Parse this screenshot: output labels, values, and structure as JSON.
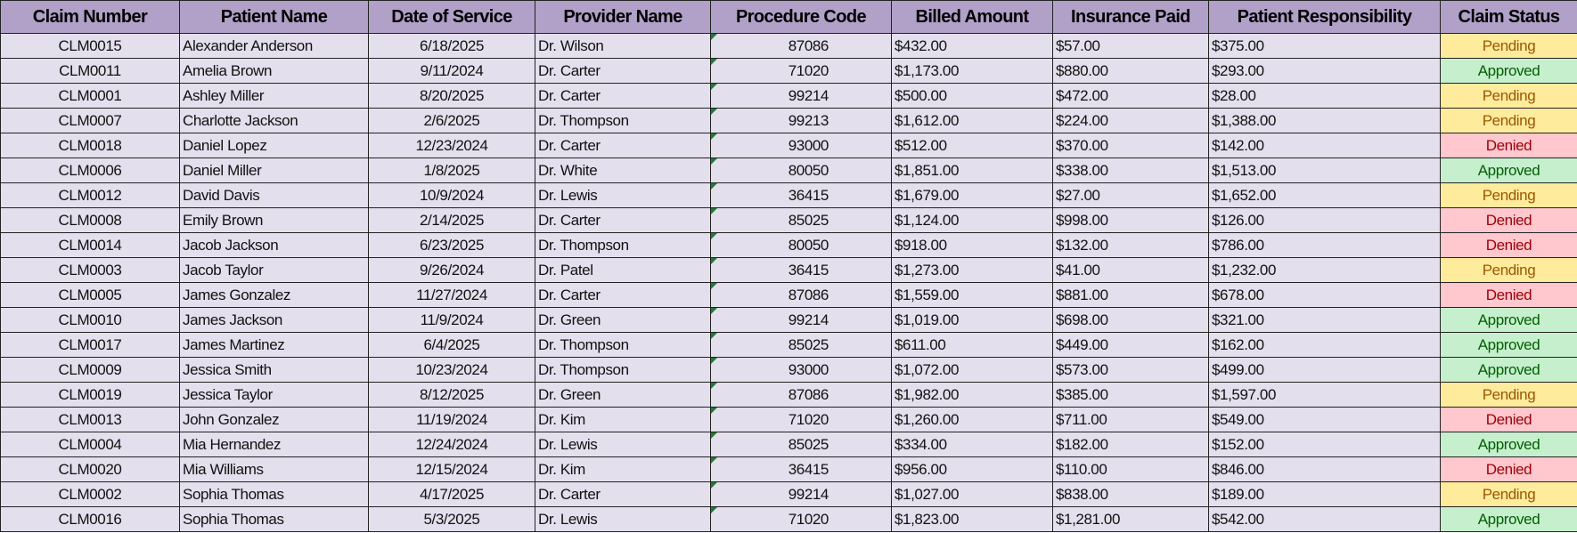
{
  "headers": [
    "Claim Number",
    "Patient Name",
    "Date of Service",
    "Provider Name",
    "Procedure Code",
    "Billed Amount",
    "Insurance Paid",
    "Patient Responsibility",
    "Claim Status"
  ],
  "status_colors": {
    "Pending": {
      "bg": "#ffeb9c",
      "fg": "#9c5700"
    },
    "Approved": {
      "bg": "#c6efce",
      "fg": "#006100"
    },
    "Denied": {
      "bg": "#ffc7ce",
      "fg": "#9c0006"
    }
  },
  "rows": [
    [
      "CLM0015",
      "Alexander Anderson",
      "6/18/2025",
      "Dr. Wilson",
      "87086",
      "$432.00",
      "$57.00",
      "$375.00",
      "Pending"
    ],
    [
      "CLM0011",
      "Amelia Brown",
      "9/11/2024",
      "Dr. Carter",
      "71020",
      "$1,173.00",
      "$880.00",
      "$293.00",
      "Approved"
    ],
    [
      "CLM0001",
      "Ashley Miller",
      "8/20/2025",
      "Dr. Carter",
      "99214",
      "$500.00",
      "$472.00",
      "$28.00",
      "Pending"
    ],
    [
      "CLM0007",
      "Charlotte Jackson",
      "2/6/2025",
      "Dr. Thompson",
      "99213",
      "$1,612.00",
      "$224.00",
      "$1,388.00",
      "Pending"
    ],
    [
      "CLM0018",
      "Daniel Lopez",
      "12/23/2024",
      "Dr. Carter",
      "93000",
      "$512.00",
      "$370.00",
      "$142.00",
      "Denied"
    ],
    [
      "CLM0006",
      "Daniel Miller",
      "1/8/2025",
      "Dr. White",
      "80050",
      "$1,851.00",
      "$338.00",
      "$1,513.00",
      "Approved"
    ],
    [
      "CLM0012",
      "David Davis",
      "10/9/2024",
      "Dr. Lewis",
      "36415",
      "$1,679.00",
      "$27.00",
      "$1,652.00",
      "Pending"
    ],
    [
      "CLM0008",
      "Emily Brown",
      "2/14/2025",
      "Dr. Carter",
      "85025",
      "$1,124.00",
      "$998.00",
      "$126.00",
      "Denied"
    ],
    [
      "CLM0014",
      "Jacob Jackson",
      "6/23/2025",
      "Dr. Thompson",
      "80050",
      "$918.00",
      "$132.00",
      "$786.00",
      "Denied"
    ],
    [
      "CLM0003",
      "Jacob Taylor",
      "9/26/2024",
      "Dr. Patel",
      "36415",
      "$1,273.00",
      "$41.00",
      "$1,232.00",
      "Pending"
    ],
    [
      "CLM0005",
      "James Gonzalez",
      "11/27/2024",
      "Dr. Carter",
      "87086",
      "$1,559.00",
      "$881.00",
      "$678.00",
      "Denied"
    ],
    [
      "CLM0010",
      "James Jackson",
      "11/9/2024",
      "Dr. Green",
      "99214",
      "$1,019.00",
      "$698.00",
      "$321.00",
      "Approved"
    ],
    [
      "CLM0017",
      "James Martinez",
      "6/4/2025",
      "Dr. Thompson",
      "85025",
      "$611.00",
      "$449.00",
      "$162.00",
      "Approved"
    ],
    [
      "CLM0009",
      "Jessica Smith",
      "10/23/2024",
      "Dr. Thompson",
      "93000",
      "$1,072.00",
      "$573.00",
      "$499.00",
      "Approved"
    ],
    [
      "CLM0019",
      "Jessica Taylor",
      "8/12/2025",
      "Dr. Green",
      "87086",
      "$1,982.00",
      "$385.00",
      "$1,597.00",
      "Pending"
    ],
    [
      "CLM0013",
      "John Gonzalez",
      "11/19/2024",
      "Dr. Kim",
      "71020",
      "$1,260.00",
      "$711.00",
      "$549.00",
      "Denied"
    ],
    [
      "CLM0004",
      "Mia Hernandez",
      "12/24/2024",
      "Dr. Lewis",
      "85025",
      "$334.00",
      "$182.00",
      "$152.00",
      "Approved"
    ],
    [
      "CLM0020",
      "Mia Williams",
      "12/15/2024",
      "Dr. Kim",
      "36415",
      "$956.00",
      "$110.00",
      "$846.00",
      "Denied"
    ],
    [
      "CLM0002",
      "Sophia Thomas",
      "4/17/2025",
      "Dr. Carter",
      "99214",
      "$1,027.00",
      "$838.00",
      "$189.00",
      "Pending"
    ],
    [
      "CLM0016",
      "Sophia Thomas",
      "5/3/2025",
      "Dr. Lewis",
      "71020",
      "$1,823.00",
      "$1,281.00",
      "$542.00",
      "Approved"
    ]
  ]
}
